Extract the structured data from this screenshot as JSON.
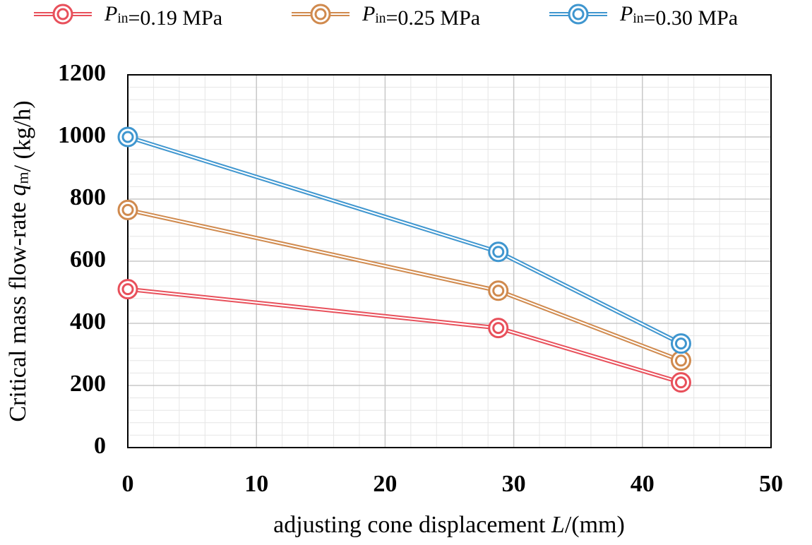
{
  "chart_data": {
    "type": "line",
    "x_label": "adjusting cone displacement L/(mm)",
    "y_label": "Critical mass flow-rate qm/ (kg/h)",
    "x": [
      0,
      28.8,
      43
    ],
    "series": [
      {
        "name": "Pin=0.19 MPa",
        "color": "#e8505b",
        "values": [
          510,
          385,
          210
        ]
      },
      {
        "name": "Pin=0.25 MPa",
        "color": "#d08a4e",
        "values": [
          765,
          505,
          280
        ]
      },
      {
        "name": "Pin=0.30 MPa",
        "color": "#3f96cf",
        "values": [
          1000,
          630,
          335
        ]
      }
    ],
    "xlim": [
      0,
      50
    ],
    "xticks": [
      0,
      10,
      20,
      30,
      40,
      50
    ],
    "ylim": [
      0,
      1200
    ],
    "yticks": [
      0,
      200,
      400,
      600,
      800,
      1000,
      1200
    ],
    "grid": true
  }
}
